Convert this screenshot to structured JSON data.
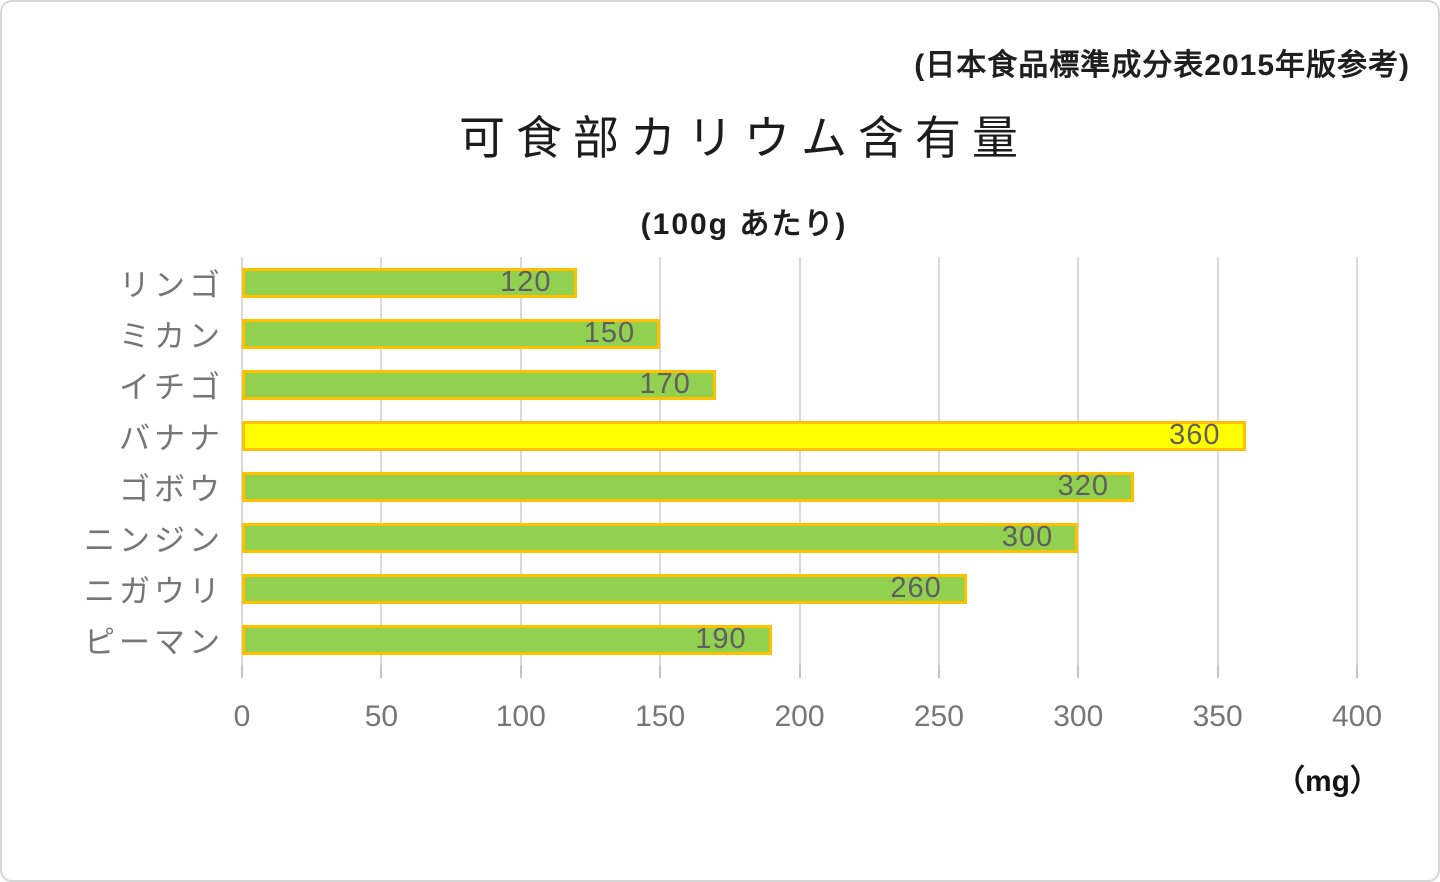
{
  "note": "(日本食品標準成分表2015年版参考)",
  "chart_data": {
    "type": "bar",
    "orientation": "horizontal",
    "title": "可食部カリウム含有量",
    "subtitle": "(100g あたり)",
    "unit_label": "（mg）",
    "categories": [
      "リンゴ",
      "ミカン",
      "イチゴ",
      "バナナ",
      "ゴボウ",
      "ニンジン",
      "ニガウリ",
      "ピーマン"
    ],
    "values": [
      120,
      150,
      170,
      360,
      320,
      300,
      260,
      190
    ],
    "bar_colors": [
      "green",
      "green",
      "green",
      "yellow",
      "green",
      "green",
      "green",
      "green"
    ],
    "colors": {
      "green": "#92D050",
      "yellow": "#FFFF00",
      "border": "#FFC000",
      "gridline": "#DADADA",
      "label_gray": "#767676",
      "value_gray": "#5F5F5F",
      "text_dark": "#1C1C1C"
    },
    "xlim": [
      0,
      400
    ],
    "xticks": [
      0,
      50,
      100,
      150,
      200,
      250,
      300,
      350,
      400
    ],
    "grid": true,
    "value_labels": "inside-end",
    "legend": false
  }
}
